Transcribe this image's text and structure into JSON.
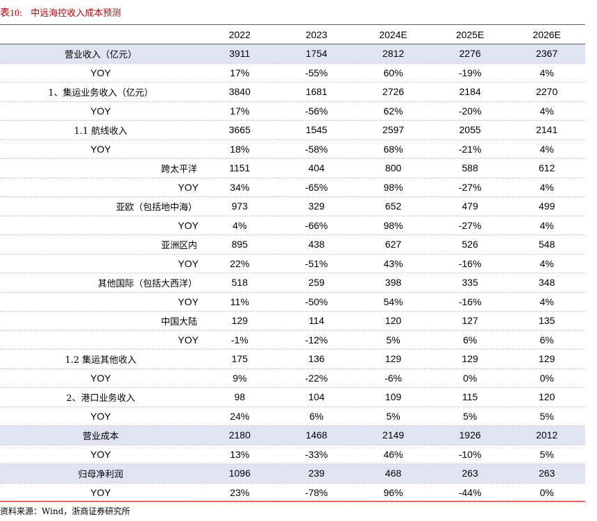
{
  "title": {
    "label": "表10:",
    "text": "中远海控收入成本预测"
  },
  "table": {
    "columns": [
      "2022",
      "2023",
      "2024E",
      "2025E",
      "2026E"
    ],
    "rows": [
      {
        "label": "营业收入（亿元）",
        "values": [
          "3911",
          "1754",
          "2812",
          "2276",
          "2367"
        ]
      },
      {
        "label": "YOY",
        "values": [
          "17%",
          "-55%",
          "60%",
          "-19%",
          "4%"
        ]
      },
      {
        "label": "1、集运业务收入（亿元）",
        "values": [
          "3840",
          "1681",
          "2726",
          "2184",
          "2270"
        ]
      },
      {
        "label": "YOY",
        "values": [
          "17%",
          "-56%",
          "62%",
          "-20%",
          "4%"
        ]
      },
      {
        "label": "1.1 航线收入",
        "values": [
          "3665",
          "1545",
          "2597",
          "2055",
          "2141"
        ]
      },
      {
        "label": "YOY",
        "values": [
          "18%",
          "-58%",
          "68%",
          "-21%",
          "4%"
        ]
      },
      {
        "label": "跨太平洋",
        "values": [
          "1151",
          "404",
          "800",
          "588",
          "612"
        ]
      },
      {
        "label": "YOY",
        "values": [
          "34%",
          "-65%",
          "98%",
          "-27%",
          "4%"
        ]
      },
      {
        "label": "亚欧（包括地中海）",
        "values": [
          "973",
          "329",
          "652",
          "479",
          "499"
        ]
      },
      {
        "label": "YOY",
        "values": [
          "4%",
          "-66%",
          "98%",
          "-27%",
          "4%"
        ]
      },
      {
        "label": "亚洲区内",
        "values": [
          "895",
          "438",
          "627",
          "526",
          "548"
        ]
      },
      {
        "label": "YOY",
        "values": [
          "22%",
          "-51%",
          "43%",
          "-16%",
          "4%"
        ]
      },
      {
        "label": "其他国际（包括大西洋）",
        "values": [
          "518",
          "259",
          "398",
          "335",
          "348"
        ]
      },
      {
        "label": "YOY",
        "values": [
          "11%",
          "-50%",
          "54%",
          "-16%",
          "4%"
        ]
      },
      {
        "label": "中国大陆",
        "values": [
          "129",
          "114",
          "120",
          "127",
          "135"
        ]
      },
      {
        "label": "YOY",
        "values": [
          "-1%",
          "-12%",
          "5%",
          "6%",
          "6%"
        ]
      },
      {
        "label": "1.2 集运其他收入",
        "values": [
          "175",
          "136",
          "129",
          "129",
          "129"
        ]
      },
      {
        "label": "YOY",
        "values": [
          "9%",
          "-22%",
          "-6%",
          "0%",
          "0%"
        ]
      },
      {
        "label": "2、港口业务收入",
        "values": [
          "98",
          "104",
          "109",
          "115",
          "120"
        ]
      },
      {
        "label": "YOY",
        "values": [
          "24%",
          "6%",
          "5%",
          "5%",
          "5%"
        ]
      },
      {
        "label": "营业成本",
        "values": [
          "2180",
          "1468",
          "2149",
          "1926",
          "2012"
        ]
      },
      {
        "label": "YOY",
        "values": [
          "13%",
          "-33%",
          "46%",
          "-10%",
          "5%"
        ]
      },
      {
        "label": "归母净利润",
        "values": [
          "1096",
          "239",
          "468",
          "263",
          "263"
        ]
      },
      {
        "label": "YOY",
        "values": [
          "23%",
          "-78%",
          "96%",
          "-44%",
          "0%"
        ]
      }
    ]
  },
  "source": "资料来源：Wind，浙商证券研究所",
  "colors": {
    "accent": "#c00000",
    "rule": "#d9231d",
    "band": "#dfe3f2"
  }
}
